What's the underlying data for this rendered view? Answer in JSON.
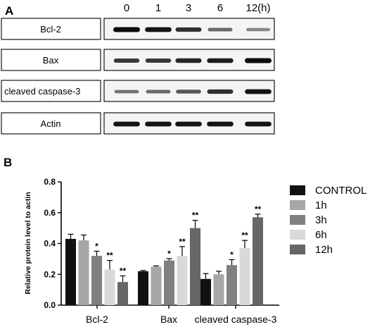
{
  "panel_a": {
    "label": "A",
    "time_header": [
      "0",
      "1",
      "3",
      "6",
      "12(h)"
    ],
    "rows": [
      {
        "label": "Bcl-2",
        "band_intensity": [
          1.0,
          0.95,
          0.8,
          0.5,
          0.35
        ]
      },
      {
        "label": "Bax",
        "band_intensity": [
          0.75,
          0.75,
          0.85,
          0.9,
          1.0
        ]
      },
      {
        "label": "cleaved caspase-3",
        "band_intensity": [
          0.45,
          0.5,
          0.6,
          0.8,
          0.95
        ]
      },
      {
        "label": "Actin",
        "band_intensity": [
          0.95,
          0.95,
          0.95,
          0.95,
          0.95
        ]
      }
    ]
  },
  "panel_b": {
    "label": "B"
  },
  "chart_data": {
    "type": "bar",
    "title": "",
    "xlabel": "",
    "ylabel": "Relative  protein level to actin",
    "ylim": [
      0.0,
      0.8
    ],
    "yticks": [
      "0.0",
      "0.2",
      "0.4",
      "0.6",
      "0.8"
    ],
    "categories": [
      "Bcl-2",
      "Bax",
      "cleaved caspase-3"
    ],
    "grid": false,
    "legend_position": "right",
    "series": [
      {
        "name": "CONTROL",
        "color": "#111111",
        "values": [
          0.43,
          0.22,
          0.17
        ],
        "errors": [
          0.03,
          0.005,
          0.035
        ],
        "sig": [
          "",
          "",
          ""
        ]
      },
      {
        "name": "1h",
        "color": "#a6a6a6",
        "values": [
          0.42,
          0.25,
          0.2
        ],
        "errors": [
          0.035,
          0.005,
          0.02
        ],
        "sig": [
          "",
          "",
          ""
        ]
      },
      {
        "name": "3h",
        "color": "#808080",
        "values": [
          0.32,
          0.29,
          0.26
        ],
        "errors": [
          0.03,
          0.012,
          0.035
        ],
        "sig": [
          "*",
          "*",
          "*"
        ]
      },
      {
        "name": "6h",
        "color": "#d9d9d9",
        "values": [
          0.23,
          0.32,
          0.37
        ],
        "errors": [
          0.06,
          0.06,
          0.05
        ],
        "sig": [
          "**",
          "**",
          "**"
        ]
      },
      {
        "name": "12h",
        "color": "#666666",
        "values": [
          0.15,
          0.5,
          0.57
        ],
        "errors": [
          0.04,
          0.05,
          0.02
        ],
        "sig": [
          "**",
          "**",
          "**"
        ]
      }
    ]
  }
}
